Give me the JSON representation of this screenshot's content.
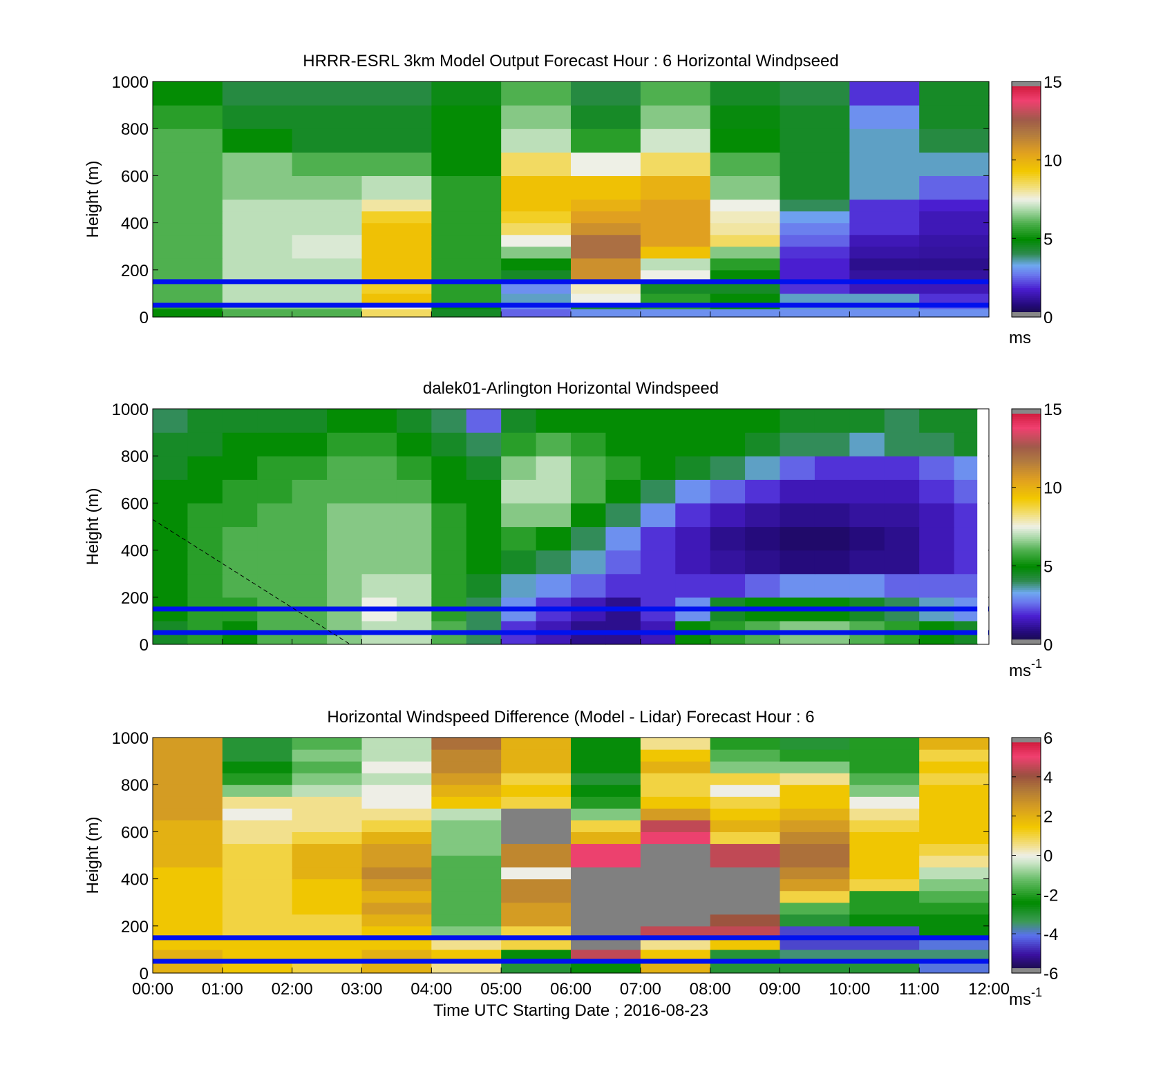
{
  "chart_data": [
    {
      "type": "heatmap",
      "title": "HRRR-ESRL 3km Model Output   Forecast Hour : 6 Horizontal Windpseed",
      "ylabel": "Height (m)",
      "ylim": [
        0,
        1000
      ],
      "yticks": [
        "0",
        "200",
        "400",
        "600",
        "800",
        "1000"
      ],
      "xlim": [
        "00:00",
        "12:00"
      ],
      "x_edges": [
        "00:00",
        "01:00",
        "02:00",
        "03:00",
        "04:00",
        "05:00",
        "06:00",
        "07:00",
        "08:00",
        "09:00",
        "10:00",
        "11:00",
        "12:00"
      ],
      "y_edges": [
        0,
        35,
        55,
        100,
        150,
        200,
        250,
        300,
        350,
        400,
        450,
        500,
        600,
        700,
        800,
        900,
        1000
      ],
      "values": [
        [
          5.0,
          6.0,
          6.0,
          8.5,
          4.5,
          2.5,
          3.0,
          3.0,
          3.0,
          3.0,
          3.0,
          3.0
        ],
        [
          5.5,
          6.5,
          6.5,
          7.5,
          5.0,
          3.0,
          4.5,
          5.5,
          5.0,
          3.5,
          3.5,
          2.5
        ],
        [
          6.0,
          7.0,
          7.0,
          9.5,
          5.5,
          3.5,
          7.5,
          5.5,
          5.0,
          3.5,
          3.5,
          2.0
        ],
        [
          6.0,
          7.0,
          7.0,
          9.0,
          5.5,
          3.0,
          7.8,
          4.5,
          4.5,
          2.0,
          1.5,
          1.5
        ],
        [
          6.0,
          7.0,
          7.0,
          9.5,
          5.5,
          4.5,
          11.0,
          7.5,
          5.0,
          1.8,
          1.2,
          1.2
        ],
        [
          6.0,
          7.0,
          7.0,
          9.5,
          5.5,
          5.0,
          11.0,
          7.0,
          5.5,
          1.8,
          1.0,
          1.0
        ],
        [
          6.0,
          7.0,
          7.3,
          9.5,
          5.5,
          6.5,
          12.0,
          9.5,
          6.5,
          2.0,
          1.3,
          1.2
        ],
        [
          6.0,
          7.0,
          7.3,
          9.5,
          5.5,
          7.5,
          12.0,
          10.5,
          8.5,
          2.5,
          1.5,
          1.3
        ],
        [
          6.0,
          7.0,
          7.0,
          9.5,
          5.5,
          8.5,
          11.0,
          10.5,
          8.0,
          2.8,
          2.0,
          1.5
        ],
        [
          6.0,
          7.0,
          7.0,
          9.0,
          5.5,
          9.0,
          10.5,
          10.5,
          7.8,
          3.2,
          2.0,
          1.5
        ],
        [
          6.0,
          7.0,
          7.0,
          8.0,
          5.5,
          9.5,
          10.0,
          10.5,
          7.5,
          4.0,
          2.0,
          1.8
        ],
        [
          6.0,
          6.5,
          6.5,
          7.0,
          5.5,
          9.5,
          9.5,
          10.0,
          6.5,
          4.5,
          3.5,
          2.5
        ],
        [
          6.0,
          6.5,
          6.0,
          6.0,
          5.0,
          8.5,
          7.5,
          8.5,
          6.0,
          4.5,
          3.5,
          3.5
        ],
        [
          6.0,
          5.0,
          4.5,
          4.5,
          5.0,
          7.0,
          5.5,
          7.2,
          5.0,
          4.5,
          3.5,
          4.2
        ],
        [
          5.5,
          4.5,
          4.5,
          4.5,
          5.0,
          6.5,
          4.5,
          6.5,
          4.8,
          4.5,
          3.0,
          4.5
        ],
        [
          5.0,
          4.2,
          4.2,
          4.2,
          4.7,
          6.0,
          4.2,
          6.0,
          4.5,
          4.2,
          2.0,
          4.5
        ]
      ],
      "colorbar": {
        "ticks": [
          "0",
          "5",
          "10",
          "15"
        ],
        "range": [
          0,
          15
        ],
        "unit": "ms"
      },
      "reference_lines_m": [
        150,
        50
      ]
    },
    {
      "type": "heatmap",
      "title": "dalek01-Arlington  Horizontal Windspeed",
      "ylabel": "Height (m)",
      "ylim": [
        0,
        1000
      ],
      "yticks": [
        "0",
        "200",
        "400",
        "600",
        "800",
        "1000"
      ],
      "xlim": [
        "00:00",
        "12:00"
      ],
      "data_end": "11:50",
      "x_edges": [
        "00:00",
        "00:30",
        "01:00",
        "01:30",
        "02:00",
        "02:30",
        "03:00",
        "03:30",
        "04:00",
        "04:30",
        "05:00",
        "05:30",
        "06:00",
        "06:30",
        "07:00",
        "07:30",
        "08:00",
        "08:30",
        "09:00",
        "09:30",
        "10:00",
        "10:30",
        "11:00",
        "11:30",
        "11:50"
      ],
      "y_edges": [
        0,
        100,
        200,
        300,
        400,
        500,
        600,
        700,
        800,
        900,
        1000
      ],
      "values": [
        [
          4.5,
          5.5,
          5.0,
          6.0,
          6.0,
          6.5,
          7.0,
          7.0,
          6.0,
          4.0,
          2.0,
          1.5,
          1.0,
          1.0,
          1.5,
          5.0,
          5.5,
          6.0,
          6.5,
          6.5,
          6.0,
          5.5,
          5.0,
          4.5
        ],
        [
          5.0,
          5.5,
          5.5,
          6.0,
          6.0,
          6.5,
          7.5,
          7.0,
          5.5,
          4.0,
          3.0,
          2.0,
          1.5,
          1.0,
          2.0,
          3.0,
          4.5,
          5.0,
          5.0,
          5.0,
          4.5,
          4.0,
          3.5,
          3.0
        ],
        [
          5.0,
          5.5,
          6.0,
          6.0,
          6.0,
          6.5,
          7.0,
          7.0,
          5.5,
          4.5,
          3.5,
          3.0,
          2.5,
          2.0,
          2.0,
          2.0,
          2.0,
          2.5,
          3.0,
          3.0,
          3.0,
          2.5,
          2.5,
          2.5
        ],
        [
          5.0,
          5.5,
          6.0,
          6.0,
          6.0,
          6.5,
          6.5,
          6.5,
          5.5,
          5.0,
          4.5,
          4.0,
          3.5,
          2.5,
          2.0,
          1.5,
          1.2,
          1.0,
          0.8,
          0.8,
          1.0,
          1.0,
          1.5,
          2.0
        ],
        [
          5.0,
          5.5,
          6.0,
          6.0,
          6.0,
          6.5,
          6.5,
          6.5,
          5.5,
          5.0,
          5.5,
          5.0,
          4.0,
          3.0,
          2.0,
          1.5,
          1.0,
          0.8,
          0.6,
          0.6,
          0.8,
          1.0,
          1.5,
          2.0
        ],
        [
          5.0,
          5.5,
          5.5,
          6.0,
          6.0,
          6.5,
          6.5,
          6.5,
          5.5,
          5.0,
          6.5,
          6.5,
          5.0,
          4.0,
          3.0,
          2.0,
          1.5,
          1.2,
          1.0,
          1.0,
          1.2,
          1.2,
          1.5,
          2.0
        ],
        [
          5.0,
          5.0,
          5.5,
          5.5,
          6.0,
          6.0,
          6.0,
          6.0,
          5.0,
          5.0,
          7.0,
          7.0,
          6.0,
          5.0,
          4.0,
          3.0,
          2.5,
          2.0,
          1.5,
          1.5,
          1.5,
          1.5,
          2.0,
          2.5
        ],
        [
          4.5,
          5.0,
          5.0,
          5.5,
          5.5,
          6.0,
          6.0,
          5.5,
          5.0,
          4.5,
          6.5,
          7.0,
          6.0,
          5.5,
          5.0,
          4.5,
          4.0,
          3.5,
          2.5,
          2.0,
          2.0,
          2.0,
          2.5,
          3.0
        ],
        [
          4.5,
          4.5,
          5.0,
          5.0,
          5.0,
          5.5,
          5.5,
          5.0,
          4.5,
          4.0,
          5.5,
          6.0,
          5.5,
          5.0,
          5.0,
          5.0,
          5.0,
          4.5,
          4.0,
          4.0,
          3.5,
          4.0,
          4.0,
          4.5
        ],
        [
          4.0,
          4.5,
          4.5,
          4.5,
          4.5,
          5.0,
          5.0,
          4.5,
          4.0,
          2.5,
          4.5,
          5.0,
          5.0,
          5.0,
          5.0,
          5.0,
          5.0,
          5.0,
          4.5,
          4.5,
          4.5,
          4.0,
          4.5,
          4.5
        ]
      ],
      "colorbar": {
        "ticks": [
          "0",
          "5",
          "10",
          "15"
        ],
        "range": [
          0,
          15
        ],
        "unit": "ms",
        "unit_exponent": "-1"
      },
      "reference_lines_m": [
        150,
        50
      ]
    },
    {
      "type": "heatmap",
      "title": "Horizontal Windspeed Difference (Model - Lidar) Forecast Hour : 6",
      "ylabel": "Height (m)",
      "xlabel": "Time UTC  Starting Date ; 2016-08-23",
      "ylim": [
        0,
        1000
      ],
      "yticks": [
        "0",
        "200",
        "400",
        "600",
        "800",
        "1000"
      ],
      "xticks": [
        "00:00",
        "01:00",
        "02:00",
        "03:00",
        "04:00",
        "05:00",
        "06:00",
        "07:00",
        "08:00",
        "09:00",
        "10:00",
        "11:00",
        "12:00"
      ],
      "x_edges": [
        "00:00",
        "01:00",
        "02:00",
        "03:00",
        "04:00",
        "05:00",
        "06:00",
        "07:00",
        "08:00",
        "09:00",
        "10:00",
        "11:00",
        "12:00"
      ],
      "y_edges": [
        0,
        50,
        100,
        150,
        200,
        250,
        300,
        350,
        400,
        450,
        500,
        550,
        600,
        650,
        700,
        750,
        800,
        850,
        900,
        950,
        1000
      ],
      "values": [
        [
          2.0,
          1.5,
          1.0,
          2.0,
          0.5,
          -3.0,
          -2.5,
          2.0,
          -3.0,
          -3.0,
          -3.0,
          -4.0
        ],
        [
          2.0,
          1.5,
          1.5,
          2.0,
          1.5,
          -2.5,
          4.5,
          1.5,
          -3.0,
          -3.5,
          -3.5,
          -3.5
        ],
        [
          1.5,
          1.5,
          1.5,
          1.5,
          0.5,
          1.0,
          null,
          0.5,
          1.5,
          -4.5,
          -4.5,
          -4.0
        ],
        [
          1.5,
          1.0,
          1.0,
          1.5,
          -1.0,
          1.0,
          null,
          4.5,
          4.5,
          -4.5,
          -4.5,
          -2.5
        ],
        [
          1.5,
          1.0,
          1.0,
          2.0,
          -1.5,
          2.5,
          null,
          null,
          4.0,
          -3.0,
          -2.5,
          -2.5
        ],
        [
          1.5,
          1.0,
          1.5,
          2.5,
          -1.5,
          2.5,
          null,
          null,
          null,
          -1.5,
          -2.0,
          -2.0
        ],
        [
          1.5,
          1.0,
          1.5,
          2.0,
          -1.5,
          3.0,
          null,
          null,
          null,
          1.0,
          -2.0,
          -1.5
        ],
        [
          1.5,
          1.0,
          1.5,
          2.5,
          -1.5,
          3.0,
          null,
          null,
          null,
          2.5,
          1.0,
          -1.0
        ],
        [
          1.5,
          1.0,
          2.0,
          3.0,
          -1.5,
          0.0,
          null,
          null,
          null,
          3.0,
          1.5,
          -0.5
        ],
        [
          2.0,
          1.0,
          2.0,
          2.5,
          -1.5,
          3.0,
          5.0,
          null,
          4.5,
          3.5,
          1.5,
          0.5
        ],
        [
          2.0,
          1.0,
          2.0,
          2.5,
          -1.0,
          3.0,
          5.0,
          null,
          4.5,
          3.5,
          1.5,
          1.0
        ],
        [
          2.0,
          0.5,
          1.0,
          2.0,
          -1.0,
          null,
          2.0,
          5.0,
          1.0,
          3.0,
          1.5,
          1.5
        ],
        [
          2.0,
          0.5,
          0.5,
          1.0,
          -1.0,
          null,
          1.0,
          4.5,
          2.0,
          2.5,
          1.0,
          1.5
        ],
        [
          2.5,
          0.0,
          0.5,
          0.5,
          -0.5,
          null,
          -1.0,
          2.5,
          1.5,
          2.0,
          0.5,
          1.5
        ],
        [
          2.5,
          0.5,
          0.5,
          0.0,
          1.5,
          1.0,
          -2.0,
          1.5,
          1.0,
          1.5,
          0.0,
          1.5
        ],
        [
          2.5,
          -1.0,
          -0.5,
          0.0,
          2.0,
          1.5,
          -2.5,
          1.0,
          0.0,
          1.5,
          -1.0,
          1.5
        ],
        [
          2.5,
          -2.0,
          -1.0,
          -0.5,
          2.5,
          1.0,
          -3.0,
          1.0,
          1.0,
          0.5,
          -1.5,
          1.0
        ],
        [
          2.5,
          -2.5,
          -1.5,
          0.0,
          3.0,
          2.0,
          -2.5,
          2.0,
          -1.0,
          -1.0,
          -2.0,
          1.5
        ],
        [
          2.5,
          -3.0,
          -1.0,
          -0.5,
          3.0,
          2.0,
          -2.5,
          1.5,
          -1.5,
          -2.0,
          -2.0,
          1.0
        ],
        [
          2.5,
          -3.0,
          -1.5,
          -0.5,
          3.5,
          2.0,
          -2.5,
          0.5,
          -2.0,
          -3.0,
          -2.0,
          2.0
        ]
      ],
      "colorbar": {
        "ticks": [
          "-6",
          "-4",
          "-2",
          "0",
          "2",
          "4",
          "6"
        ],
        "range": [
          -6,
          6
        ],
        "unit": "ms",
        "unit_exponent": "-1"
      },
      "reference_lines_m": [
        150,
        50
      ]
    }
  ],
  "colors": {
    "reference_line": "#0011ee",
    "missing_data": "#808080"
  }
}
